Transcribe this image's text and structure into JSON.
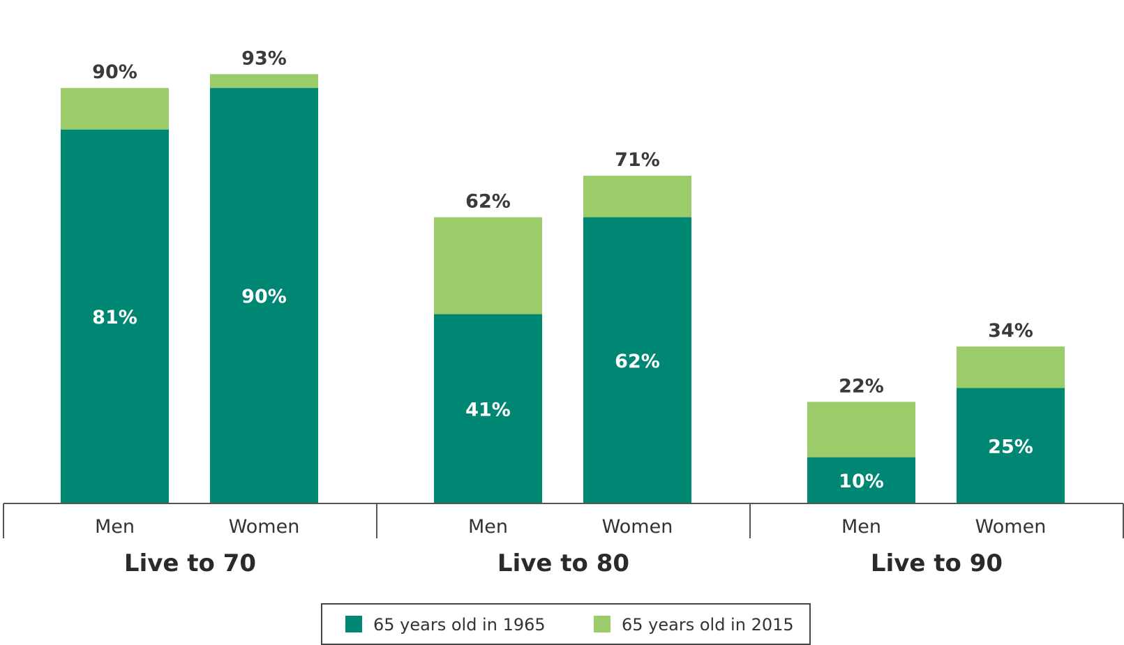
{
  "chart_data": {
    "type": "bar",
    "stacked": true,
    "ylim": [
      0,
      100
    ],
    "grid": false,
    "legend_position": "bottom-center",
    "groups": [
      {
        "label": "Live to 70",
        "categories": [
          "Men",
          "Women"
        ]
      },
      {
        "label": "Live to 80",
        "categories": [
          "Men",
          "Women"
        ]
      },
      {
        "label": "Live to 90",
        "categories": [
          "Men",
          "Women"
        ]
      }
    ],
    "categories": [
      "Men",
      "Women",
      "Men",
      "Women",
      "Men",
      "Women"
    ],
    "series": [
      {
        "name": "65 years old in 1965",
        "color": "#008773",
        "values": [
          81,
          90,
          41,
          62,
          10,
          25
        ],
        "labels": [
          "81%",
          "90%",
          "41%",
          "62%",
          "10%",
          "25%"
        ]
      },
      {
        "name": "65 years old in 2015",
        "color": "#9ccc6a",
        "totals": [
          90,
          93,
          62,
          71,
          22,
          34
        ],
        "labels": [
          "90%",
          "93%",
          "62%",
          "71%",
          "22%",
          "34%"
        ]
      }
    ]
  }
}
